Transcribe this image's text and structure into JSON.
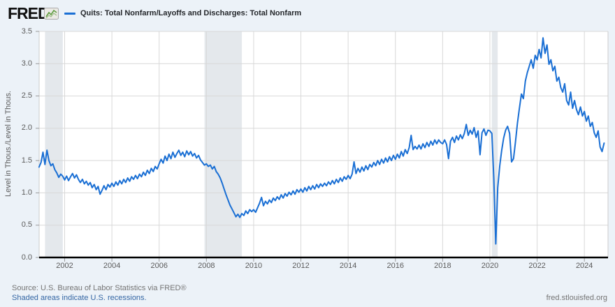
{
  "header": {
    "logo_text": "FRED",
    "logo_registered": "®",
    "legend": {
      "marker_color": "#1a6fd4",
      "label": "Quits: Total Nonfarm/Layoffs and Discharges: Total Nonfarm"
    }
  },
  "footer": {
    "source": "Source: U.S. Bureau of Labor Statistics via FRED®",
    "recession_note": "Shaded areas indicate U.S. recessions.",
    "site": "fred.stlouisfed.org"
  },
  "colors": {
    "canvas_bg": "#ecf2f8",
    "plot_bg": "#ffffff",
    "gridline": "#d8d8d8",
    "plot_border": "#cccccc",
    "axis_line": "#000000",
    "tick_mark": "#999999",
    "series_line": "#1a6fd4",
    "recession_band": "#e4e8ec",
    "link_text": "#3466a4",
    "logo_sparkline": "#5f9c41"
  },
  "chart_data": {
    "type": "line",
    "title": "Quits: Total Nonfarm/Layoffs and Discharges: Total Nonfarm",
    "xlabel": "",
    "ylabel": "Level in Thous./Level in Thous.",
    "xlim": [
      2000.92,
      2025.0
    ],
    "ylim": [
      0.0,
      3.5
    ],
    "xticks": [
      2002,
      2004,
      2006,
      2008,
      2010,
      2012,
      2014,
      2016,
      2018,
      2020,
      2022,
      2024
    ],
    "yticks": [
      0.0,
      0.5,
      1.0,
      1.5,
      2.0,
      2.5,
      3.0,
      3.5
    ],
    "grid": true,
    "legend_position": "top-left",
    "recession_bands": [
      {
        "start": 2001.17,
        "end": 2001.92
      },
      {
        "start": 2007.92,
        "end": 2009.5
      },
      {
        "start": 2020.08,
        "end": 2020.33
      }
    ],
    "series": [
      {
        "name": "Quits: Total Nonfarm/Layoffs and Discharges: Total Nonfarm",
        "color": "#1a6fd4",
        "frequency": "monthly",
        "start": {
          "year": 2000,
          "month": 12
        },
        "end": {
          "year": 2024,
          "month": 11
        },
        "values": [
          1.4,
          1.47,
          1.63,
          1.44,
          1.66,
          1.5,
          1.42,
          1.45,
          1.36,
          1.31,
          1.24,
          1.29,
          1.26,
          1.2,
          1.26,
          1.19,
          1.25,
          1.3,
          1.23,
          1.28,
          1.21,
          1.16,
          1.21,
          1.14,
          1.18,
          1.12,
          1.16,
          1.08,
          1.13,
          1.05,
          1.1,
          0.98,
          1.04,
          1.11,
          1.05,
          1.13,
          1.09,
          1.15,
          1.1,
          1.17,
          1.12,
          1.19,
          1.14,
          1.21,
          1.16,
          1.23,
          1.18,
          1.25,
          1.21,
          1.27,
          1.22,
          1.29,
          1.25,
          1.32,
          1.27,
          1.35,
          1.3,
          1.38,
          1.33,
          1.41,
          1.37,
          1.45,
          1.52,
          1.46,
          1.57,
          1.5,
          1.6,
          1.53,
          1.63,
          1.55,
          1.61,
          1.66,
          1.58,
          1.63,
          1.56,
          1.65,
          1.59,
          1.64,
          1.57,
          1.61,
          1.54,
          1.58,
          1.51,
          1.47,
          1.43,
          1.45,
          1.41,
          1.43,
          1.37,
          1.41,
          1.33,
          1.29,
          1.23,
          1.15,
          1.06,
          0.97,
          0.89,
          0.81,
          0.75,
          0.69,
          0.63,
          0.67,
          0.62,
          0.68,
          0.65,
          0.72,
          0.68,
          0.74,
          0.71,
          0.74,
          0.7,
          0.77,
          0.84,
          0.93,
          0.8,
          0.87,
          0.83,
          0.89,
          0.85,
          0.92,
          0.88,
          0.94,
          0.9,
          0.97,
          0.92,
          0.99,
          0.95,
          1.01,
          0.97,
          1.03,
          0.98,
          1.05,
          1.01,
          1.06,
          1.01,
          1.08,
          1.03,
          1.1,
          1.05,
          1.11,
          1.06,
          1.13,
          1.08,
          1.14,
          1.1,
          1.15,
          1.11,
          1.17,
          1.13,
          1.19,
          1.14,
          1.21,
          1.16,
          1.23,
          1.18,
          1.25,
          1.21,
          1.27,
          1.22,
          1.29,
          1.48,
          1.3,
          1.38,
          1.32,
          1.4,
          1.34,
          1.42,
          1.36,
          1.44,
          1.4,
          1.47,
          1.42,
          1.5,
          1.44,
          1.52,
          1.46,
          1.54,
          1.48,
          1.56,
          1.5,
          1.58,
          1.52,
          1.6,
          1.54,
          1.64,
          1.57,
          1.67,
          1.61,
          1.7,
          1.89,
          1.67,
          1.72,
          1.68,
          1.74,
          1.68,
          1.76,
          1.7,
          1.78,
          1.72,
          1.8,
          1.74,
          1.82,
          1.76,
          1.82,
          1.78,
          1.76,
          1.82,
          1.75,
          1.53,
          1.8,
          1.86,
          1.78,
          1.88,
          1.82,
          1.9,
          1.84,
          1.92,
          2.06,
          1.89,
          1.97,
          1.91,
          2.01,
          1.86,
          1.96,
          1.59,
          1.93,
          1.99,
          1.89,
          1.97,
          1.96,
          1.92,
          1.22,
          0.21,
          1.08,
          1.42,
          1.66,
          1.85,
          1.97,
          2.03,
          1.92,
          1.48,
          1.53,
          1.79,
          2.08,
          2.31,
          2.53,
          2.46,
          2.73,
          2.86,
          2.96,
          3.06,
          2.93,
          3.13,
          3.06,
          3.22,
          3.09,
          3.4,
          3.16,
          3.29,
          2.99,
          3.06,
          2.89,
          2.96,
          2.73,
          2.79,
          2.63,
          2.56,
          2.69,
          2.43,
          2.36,
          2.56,
          2.31,
          2.43,
          2.29,
          2.21,
          2.33,
          2.19,
          2.26,
          2.11,
          2.19,
          2.03,
          2.09,
          1.93,
          1.86,
          1.96,
          1.71,
          1.64,
          1.77
        ]
      }
    ]
  }
}
